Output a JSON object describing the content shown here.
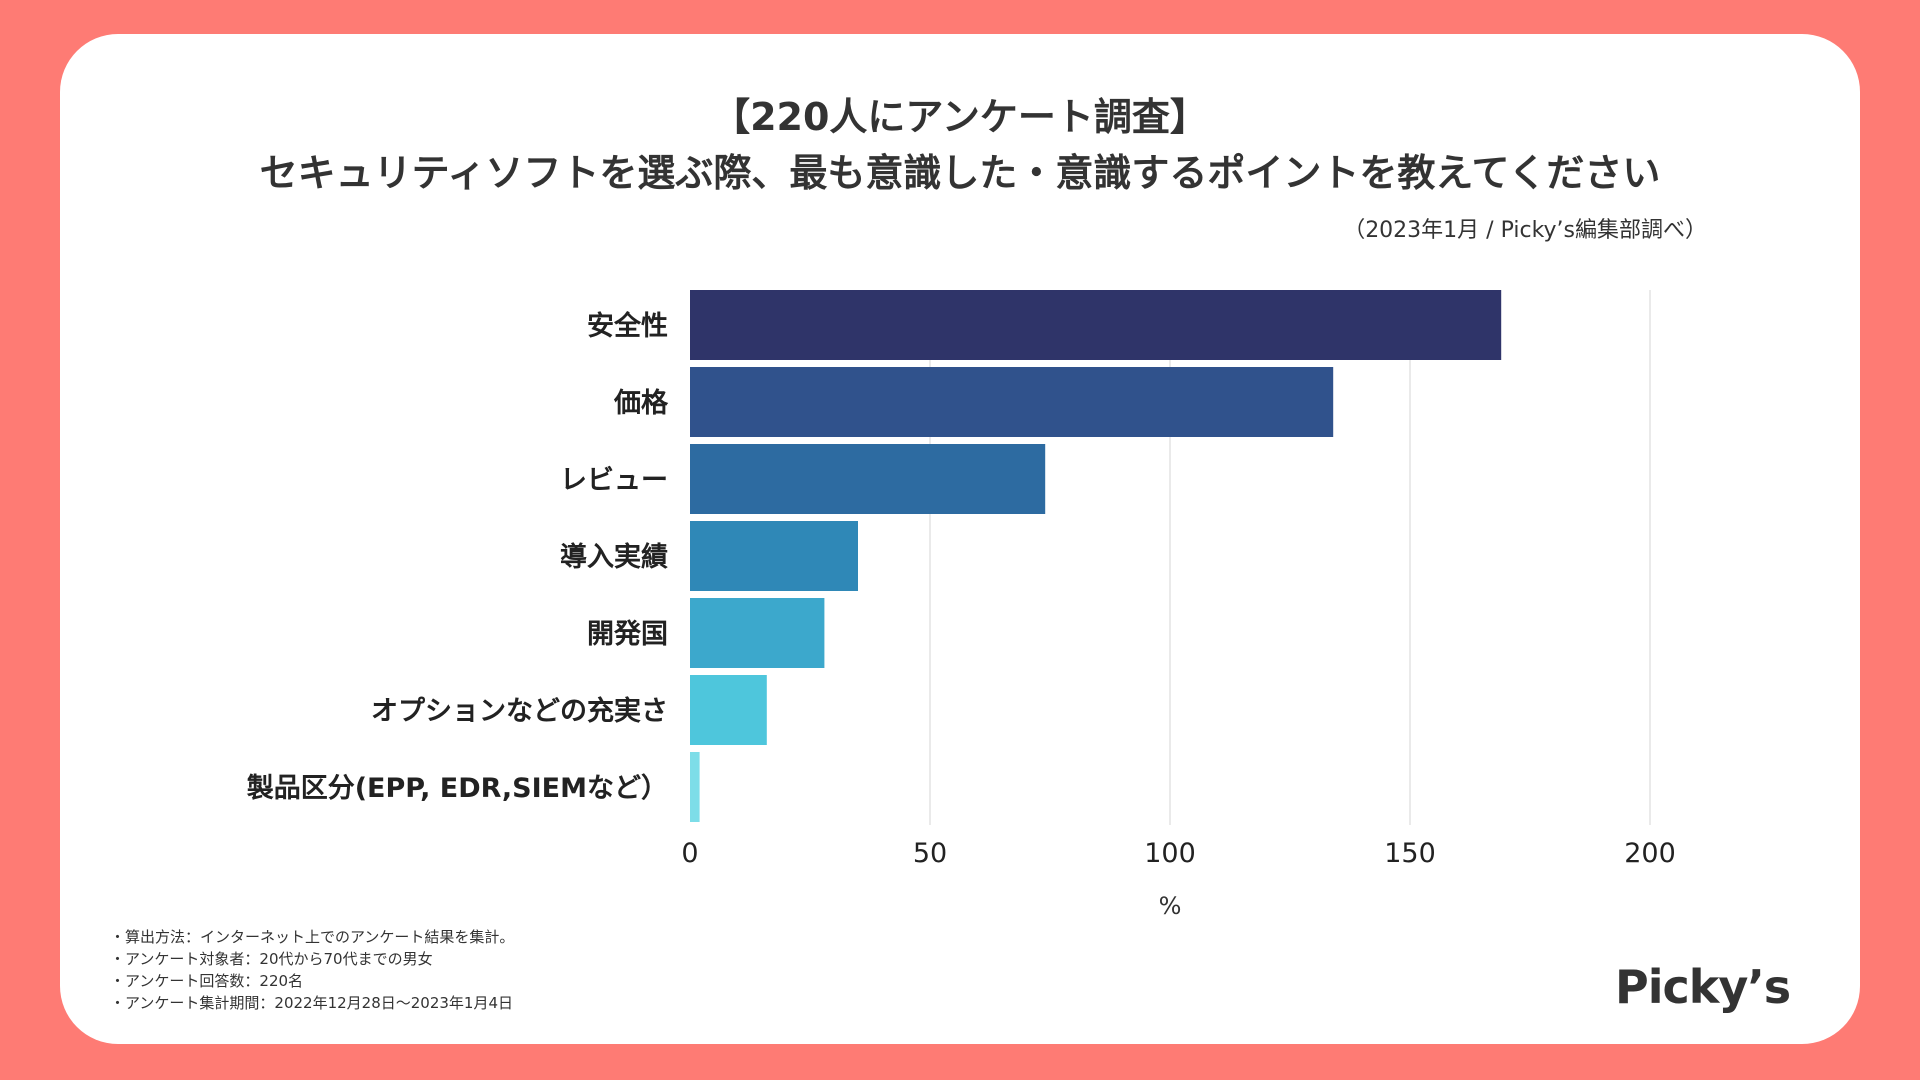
{
  "title_line1": "【220人にアンケート調査】",
  "title_line2": "セキュリティソフトを選ぶ際、最も意識した・意識するポイントを教えてください",
  "source": "（2023年1月 / Picky’s編集部調べ）",
  "notes": [
    "・算出方法：インターネット上でのアンケート結果を集計。",
    "・アンケート対象者：20代から70代までの男女",
    "・アンケート回答数：220名",
    "・アンケート集計期間：2022年12月28日〜2023年1月4日"
  ],
  "brand": "Picky’s",
  "colors": {
    "background": "#fe7b74",
    "card": "#ffffff",
    "bars": [
      "#2f3469",
      "#30528c",
      "#2d6ba1",
      "#2f88b7",
      "#3ca8cc",
      "#4ec6dc",
      "#7ddde8"
    ]
  },
  "chart_data": {
    "type": "bar",
    "orientation": "horizontal",
    "categories": [
      "安全性",
      "価格",
      "レビュー",
      "導入実績",
      "開発国",
      "オプションなどの充実さ",
      "製品区分(EPP, EDR,SIEMなど）"
    ],
    "values": [
      169,
      134,
      74,
      35,
      28,
      16,
      2
    ],
    "xlabel": "%",
    "xlim": [
      0,
      200
    ],
    "xticks": [
      0,
      50,
      100,
      150,
      200
    ],
    "grid": true
  }
}
